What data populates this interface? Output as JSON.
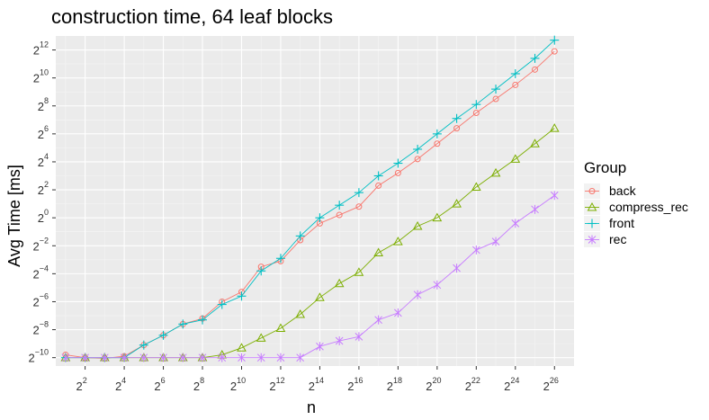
{
  "chart_data": {
    "type": "line",
    "title": "construction time, 64 leaf blocks",
    "xlabel": "n",
    "ylabel": "Avg Time [ms]",
    "x_scale": "log2",
    "y_scale": "log2",
    "x_exponent_range": [
      0.5,
      27.0
    ],
    "y_exponent_range": [
      -10.6,
      13.0
    ],
    "x_tick_exponents": [
      2,
      4,
      6,
      8,
      10,
      12,
      14,
      16,
      18,
      20,
      22,
      24,
      26
    ],
    "y_tick_exponents": [
      -10,
      -8,
      -6,
      -4,
      -2,
      0,
      2,
      4,
      6,
      8,
      10,
      12
    ],
    "tick_base": "2",
    "grid": true,
    "legend_title": "Group",
    "legend_position": "right",
    "x_exponents": [
      1,
      2,
      3,
      4,
      5,
      6,
      7,
      8,
      9,
      10,
      11,
      12,
      13,
      14,
      15,
      16,
      17,
      18,
      19,
      20,
      21,
      22,
      23,
      24,
      25,
      26
    ],
    "series": [
      {
        "name": "back",
        "color": "#F8766D",
        "marker": "circle",
        "y_exponents": [
          -9.8,
          -10.0,
          -10.05,
          -9.9,
          -9.1,
          -8.4,
          -7.6,
          -7.2,
          -6.0,
          -5.3,
          -3.5,
          -3.1,
          -1.6,
          -0.4,
          0.2,
          0.8,
          2.3,
          3.2,
          4.2,
          5.3,
          6.4,
          7.5,
          8.5,
          9.5,
          10.6,
          11.9
        ]
      },
      {
        "name": "compress_rec",
        "color": "#7CAE00",
        "marker": "triangle",
        "y_exponents": [
          -10.0,
          -10.0,
          -10.0,
          -10.0,
          -10.0,
          -10.0,
          -10.0,
          -10.0,
          -9.8,
          -9.3,
          -8.6,
          -7.9,
          -6.9,
          -5.7,
          -4.7,
          -3.9,
          -2.5,
          -1.7,
          -0.6,
          0.0,
          1.0,
          2.2,
          3.2,
          4.2,
          5.3,
          6.4
        ]
      },
      {
        "name": "front",
        "color": "#00BFC4",
        "marker": "plus",
        "y_exponents": [
          -10.0,
          -10.0,
          -10.0,
          -10.0,
          -9.1,
          -8.4,
          -7.6,
          -7.3,
          -6.2,
          -5.6,
          -3.8,
          -2.9,
          -1.3,
          0.0,
          0.9,
          1.8,
          3.0,
          3.9,
          4.9,
          6.0,
          7.1,
          8.1,
          9.2,
          10.3,
          11.4,
          12.7
        ]
      },
      {
        "name": "rec",
        "color": "#C77CFF",
        "marker": "asterisk",
        "y_exponents": [
          -10.0,
          -10.0,
          -10.0,
          -10.0,
          -10.0,
          -10.0,
          -10.0,
          -10.0,
          -10.0,
          -10.0,
          -10.0,
          -10.0,
          -10.0,
          -9.2,
          -8.8,
          -8.5,
          -7.3,
          -6.8,
          -5.5,
          -4.8,
          -3.6,
          -2.3,
          -1.7,
          -0.4,
          0.6,
          1.6
        ]
      }
    ]
  }
}
